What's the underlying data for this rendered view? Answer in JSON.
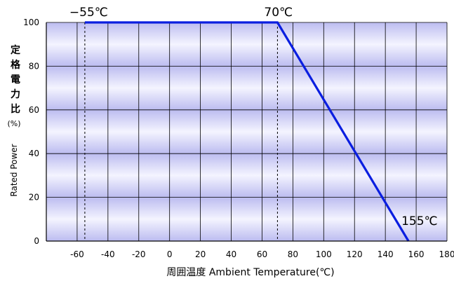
{
  "chart_data": {
    "type": "line",
    "xlabel": "周囲温度  Ambient Temperature(℃)",
    "ylabel_jp": [
      "定",
      "格",
      "電",
      "力",
      "比",
      "(%)"
    ],
    "ylabel_en": "Rated Power",
    "x_ticks": [
      -60,
      -40,
      -20,
      0,
      20,
      40,
      60,
      80,
      100,
      120,
      140,
      160,
      180
    ],
    "y_ticks": [
      0,
      20,
      40,
      60,
      80,
      100
    ],
    "xlim": [
      -80,
      180
    ],
    "ylim": [
      0,
      100
    ],
    "grid": true,
    "series": [
      {
        "color": "#0a1ee0",
        "points": [
          [
            -55,
            100
          ],
          [
            70,
            100
          ],
          [
            155,
            0
          ]
        ]
      }
    ],
    "reference_lines_x": [
      -55,
      70
    ],
    "annotations": [
      {
        "text": "−55℃",
        "x": -55,
        "y": 100
      },
      {
        "text": "70℃",
        "x": 70,
        "y": 100
      },
      {
        "text": "155℃",
        "x": 155,
        "y": 0
      }
    ]
  }
}
